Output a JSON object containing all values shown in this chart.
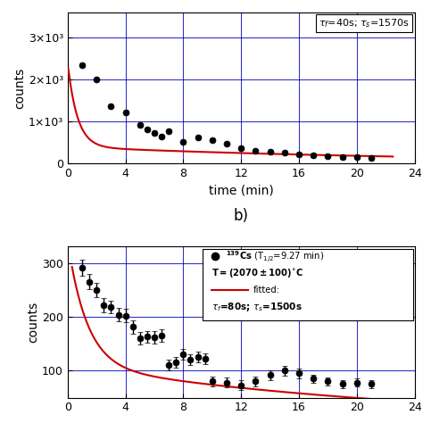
{
  "top_panel": {
    "data_x": [
      1.0,
      2.0,
      3.0,
      4.0,
      5.0,
      5.5,
      6.0,
      6.5,
      7.0,
      8.0,
      9.0,
      10.0,
      11.0,
      12.0,
      13.0,
      14.0,
      15.0,
      16.0,
      17.0,
      18.0,
      19.0,
      20.0,
      21.0
    ],
    "data_y": [
      2350,
      2000,
      1380,
      1230,
      920,
      820,
      730,
      650,
      780,
      510,
      620,
      560,
      480,
      360,
      310,
      275,
      255,
      230,
      200,
      175,
      165,
      155,
      140
    ],
    "fit_A": 2000,
    "fit_B": 400,
    "fit_tau_f_min": 0.6667,
    "fit_tau_s_min": 26.1667,
    "xlim": [
      0,
      24
    ],
    "ylim": [
      0,
      3600
    ],
    "xlabel": "time (min)",
    "ylabel": "counts",
    "yticks": [
      0,
      1000,
      2000,
      3000
    ],
    "ytick_labels": [
      "0",
      "1×10³",
      "2×10³",
      "3×10³"
    ],
    "xticks": [
      0,
      4,
      8,
      12,
      16,
      20,
      24
    ],
    "grid_color": "#0000bb",
    "fit_color": "#cc0000",
    "data_color": "black",
    "legend_tau_f": "40",
    "legend_tau_s": "1570"
  },
  "bottom_panel": {
    "data_x": [
      1.0,
      1.5,
      2.0,
      2.5,
      3.0,
      3.5,
      4.0,
      4.5,
      5.0,
      5.5,
      6.0,
      6.5,
      7.0,
      7.5,
      8.0,
      8.5,
      9.0,
      9.5,
      10.0,
      11.0,
      12.0,
      13.0,
      14.0,
      15.0,
      16.0,
      17.0,
      18.0,
      19.0,
      20.0,
      21.0
    ],
    "data_y": [
      291,
      265,
      249,
      222,
      218,
      204,
      202,
      181,
      160,
      163,
      162,
      165,
      110,
      115,
      130,
      120,
      125,
      122,
      80,
      78,
      73,
      80,
      92,
      100,
      95,
      85,
      80,
      75,
      78,
      75
    ],
    "data_yerr": [
      15,
      14,
      13,
      13,
      12,
      12,
      12,
      12,
      11,
      11,
      11,
      11,
      10,
      10,
      10,
      10,
      10,
      10,
      9,
      9,
      9,
      9,
      9,
      9,
      9,
      8,
      8,
      8,
      8,
      8
    ],
    "fit_A": 230,
    "fit_B": 110,
    "fit_tau_f_min": 1.3333,
    "fit_tau_s_min": 25.0,
    "xlim": [
      0,
      24
    ],
    "ylim": [
      50,
      330
    ],
    "ylabel": "counts",
    "yticks": [
      100,
      200,
      300
    ],
    "ytick_labels": [
      "100",
      "200",
      "300"
    ],
    "xticks": [
      0,
      4,
      8,
      12,
      16,
      20,
      24
    ],
    "grid_color": "#0000bb",
    "fit_color": "#cc0000",
    "data_color": "black",
    "legend_tau_f": "80",
    "legend_tau_s": "1500"
  }
}
